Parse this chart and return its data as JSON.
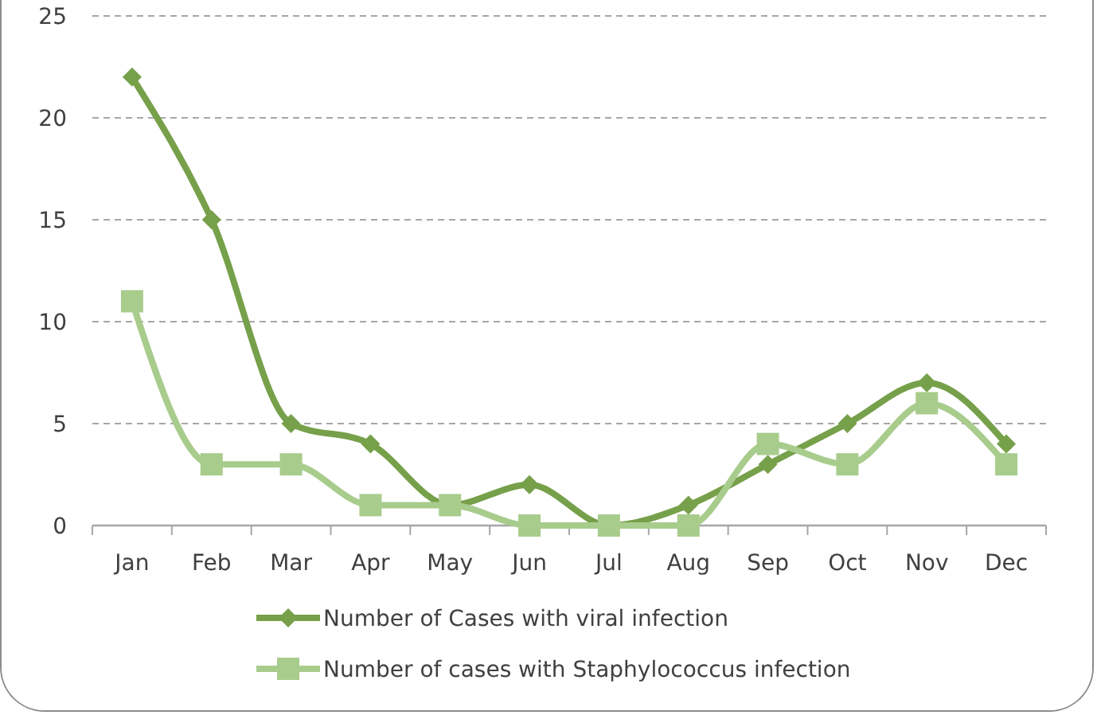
{
  "chart_data": {
    "type": "line",
    "categories": [
      "Jan",
      "Feb",
      "Mar",
      "Apr",
      "May",
      "Jun",
      "Jul",
      "Aug",
      "Sep",
      "Oct",
      "Nov",
      "Dec"
    ],
    "series": [
      {
        "name": "Number of Cases with viral infection",
        "color": "#76a04a",
        "marker": "diamond",
        "values": [
          22,
          15,
          5,
          4,
          1,
          2,
          0,
          1,
          3,
          5,
          7,
          4
        ]
      },
      {
        "name": "Number of cases with Staphylococcus infection",
        "color": "#a8cc8c",
        "marker": "square",
        "values": [
          11,
          3,
          3,
          1,
          1,
          0,
          0,
          0,
          4,
          3,
          6,
          3
        ]
      }
    ],
    "ylim": [
      0,
      25
    ],
    "yticks": [
      0,
      5,
      10,
      15,
      20,
      25
    ],
    "grid": "y",
    "legend": "bottom",
    "line_style": "solid"
  }
}
